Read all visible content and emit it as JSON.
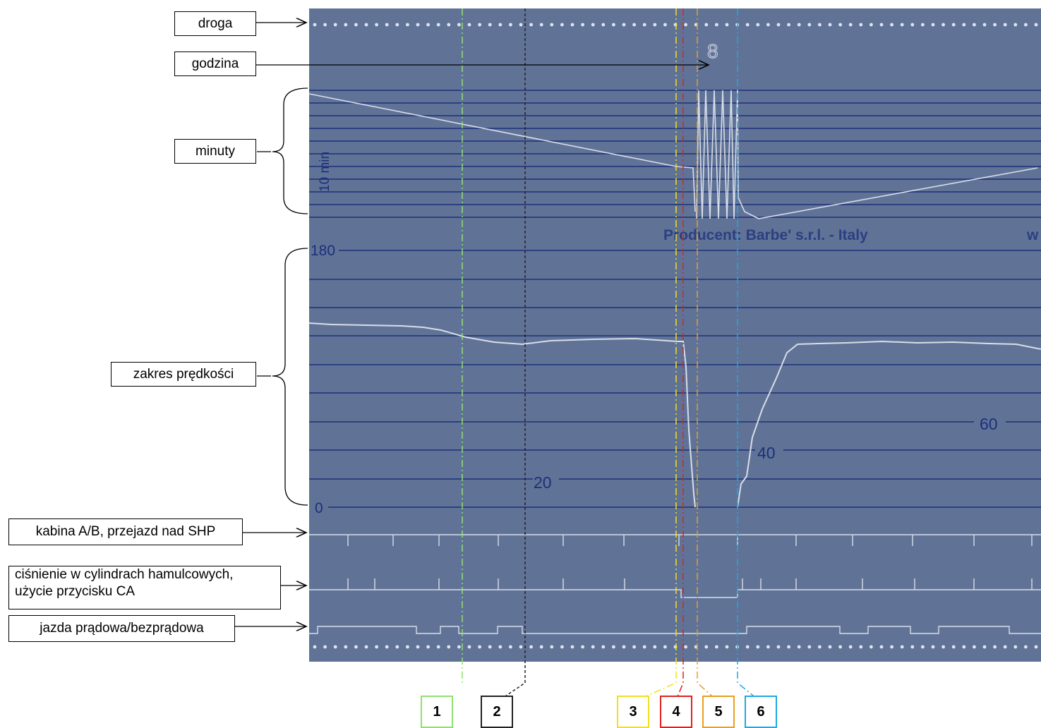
{
  "labels": {
    "droga": "droga",
    "godzina": "godzina",
    "minuty": "minuty",
    "zakres": "zakres prędkości",
    "kabina": "kabina A/B, przejazd nad SHP",
    "cisnienie_1": "ciśnienie w cylindrach hamulcowych,",
    "cisnienie_2": "użycie przycisku CA",
    "jazda": "jazda prądowa/bezprądowa"
  },
  "chart_text": {
    "min_unit": "10 min",
    "hour_digit": "8",
    "producer": "Producent:  Barbe'  s.r.l.  -  Italy",
    "producer_tail": "w",
    "speed_top": "180",
    "speed_zero": "0",
    "dist_20": "20",
    "dist_40": "40",
    "dist_60": "60"
  },
  "markers": [
    {
      "label": "1",
      "color": "#90e070"
    },
    {
      "label": "2",
      "color": "#222222"
    },
    {
      "label": "3",
      "color": "#f0e020"
    },
    {
      "label": "4",
      "color": "#e02020"
    },
    {
      "label": "5",
      "color": "#e8a020"
    },
    {
      "label": "6",
      "color": "#20a8e0"
    }
  ],
  "colors": {
    "chart_bg": "#5a6d92",
    "grid": "#1c2f7a",
    "trace": "#d8dde8"
  }
}
